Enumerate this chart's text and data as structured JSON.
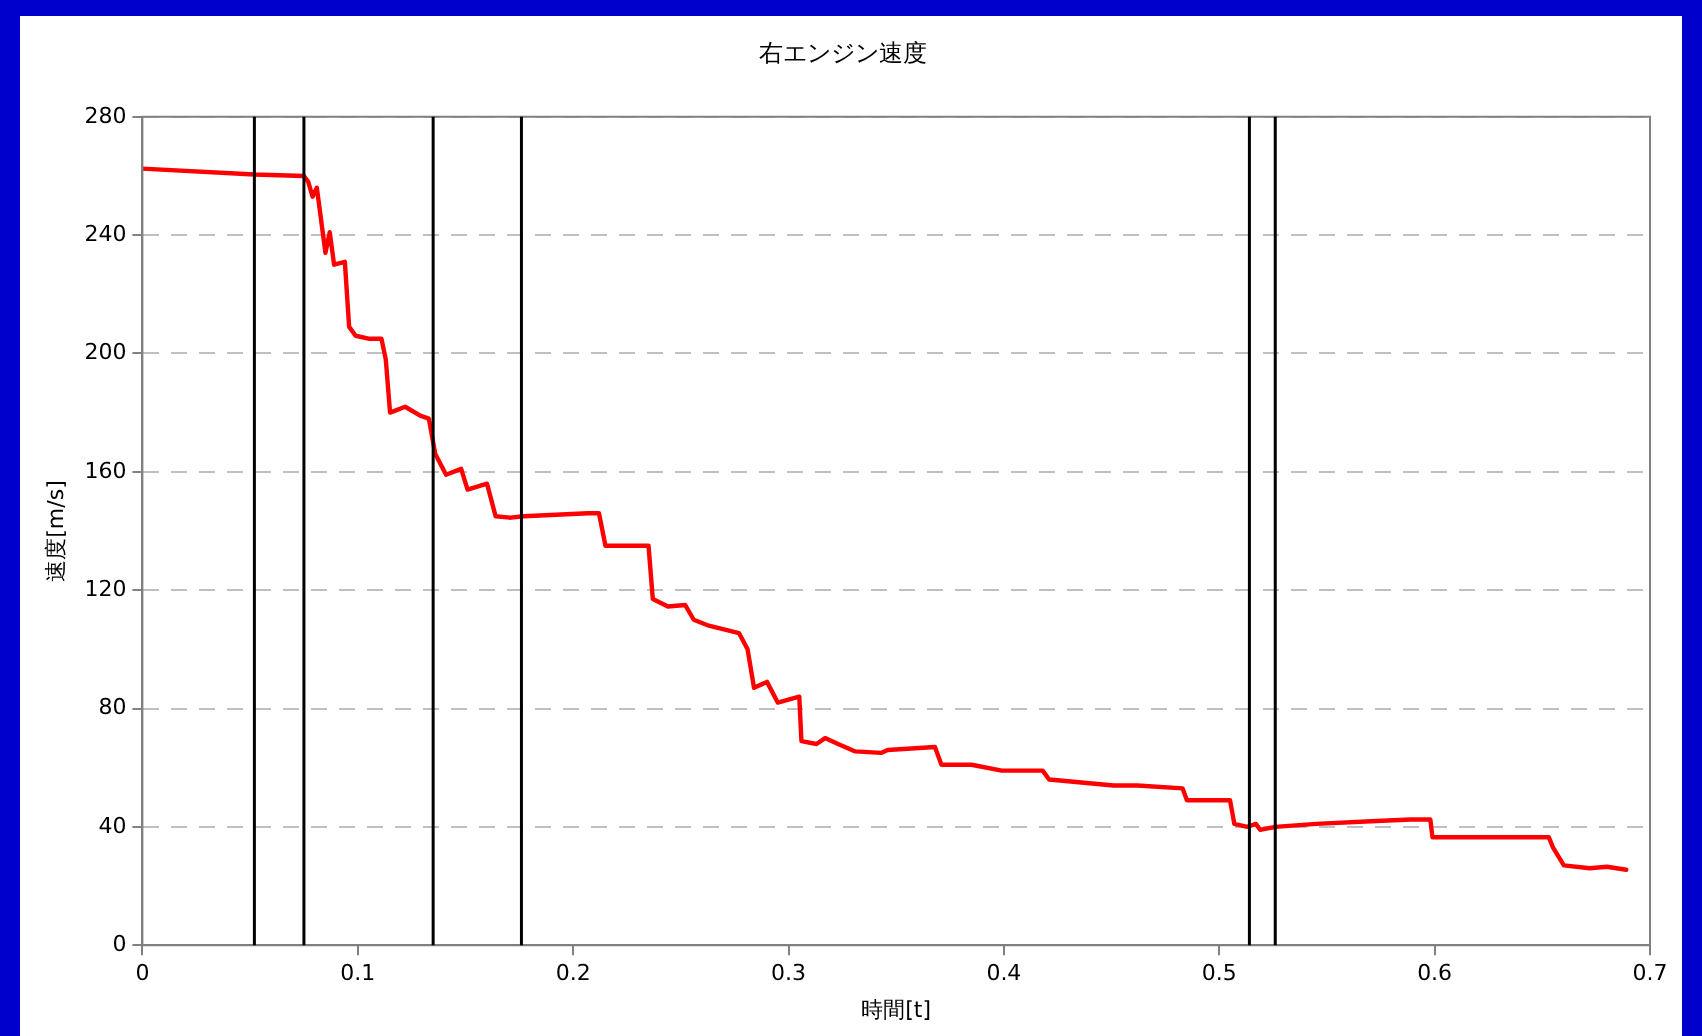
{
  "chart_data": {
    "type": "line",
    "title": "右エンジン速度",
    "xlabel": "時間[t]",
    "ylabel": "速度[m/s]",
    "xlim": [
      0,
      0.7
    ],
    "xticks": [
      0,
      0.1,
      0.2,
      0.3,
      0.4,
      0.5,
      0.6,
      0.7
    ],
    "ylim": [
      0,
      280
    ],
    "yticks": [
      0,
      40,
      80,
      120,
      160,
      200,
      240,
      280
    ],
    "grid": "y",
    "legend": false,
    "marker": "none",
    "line_style": "solid",
    "ref_lines": [
      {
        "axis": "x",
        "value": 0.052,
        "color": "#000000"
      },
      {
        "axis": "x",
        "value": 0.075,
        "color": "#000000"
      },
      {
        "axis": "x",
        "value": 0.135,
        "color": "#000000"
      },
      {
        "axis": "x",
        "value": 0.176,
        "color": "#000000"
      },
      {
        "axis": "x",
        "value": 0.514,
        "color": "#000000"
      },
      {
        "axis": "x",
        "value": 0.526,
        "color": "#000000"
      }
    ],
    "series": [
      {
        "color": "#ff0000",
        "x": [
          0,
          0.052,
          0.075,
          0.077,
          0.079,
          0.081,
          0.085,
          0.087,
          0.089,
          0.094,
          0.096,
          0.099,
          0.105,
          0.111,
          0.113,
          0.115,
          0.122,
          0.129,
          0.133,
          0.136,
          0.141,
          0.148,
          0.151,
          0.16,
          0.164,
          0.171,
          0.177,
          0.207,
          0.212,
          0.215,
          0.226,
          0.235,
          0.237,
          0.244,
          0.252,
          0.256,
          0.263,
          0.277,
          0.281,
          0.284,
          0.29,
          0.295,
          0.305,
          0.306,
          0.313,
          0.317,
          0.323,
          0.331,
          0.343,
          0.346,
          0.368,
          0.371,
          0.385,
          0.399,
          0.418,
          0.421,
          0.451,
          0.462,
          0.483,
          0.485,
          0.505,
          0.507,
          0.513,
          0.517,
          0.519,
          0.526,
          0.545,
          0.573,
          0.589,
          0.598,
          0.599,
          0.653,
          0.655,
          0.66,
          0.672,
          0.68,
          0.689
        ],
        "values": [
          262.5,
          260.5,
          260,
          258,
          253,
          256,
          234,
          241,
          230,
          231,
          209,
          206,
          205,
          205,
          198,
          180,
          182,
          179,
          178,
          166,
          159,
          161,
          154,
          156,
          145,
          144.5,
          145,
          146,
          146,
          135,
          135,
          135,
          117,
          114.5,
          115,
          110,
          108,
          105.5,
          100,
          87,
          89,
          82,
          84,
          69,
          68,
          70,
          68,
          65.5,
          65,
          66,
          67,
          61,
          61,
          59,
          59,
          56,
          54,
          54,
          53,
          49,
          49,
          41,
          40,
          41,
          39,
          40,
          41,
          42,
          42.5,
          42.5,
          36.5,
          36.5,
          33,
          27,
          26,
          26.5,
          25.5
        ]
      }
    ]
  }
}
